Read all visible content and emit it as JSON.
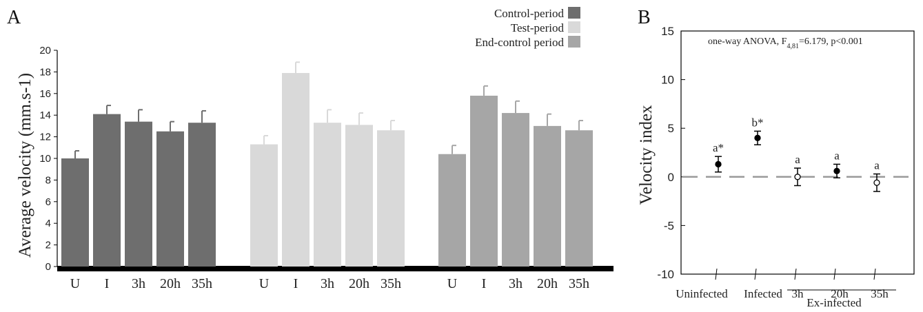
{
  "panel_a": {
    "label": "A",
    "legend": [
      {
        "name": "Control-period",
        "color": "#6e6e6e"
      },
      {
        "name": "Test-period",
        "color": "#d9d9d9"
      },
      {
        "name": "End-control period",
        "color": "#a6a6a6"
      }
    ]
  },
  "panel_b": {
    "label": "B",
    "annotation": "one-way ANOVA,  F",
    "annotation_sub": "4,81",
    "annotation_tail": "=6.179, p<0.001",
    "group_label": "Ex-infected"
  },
  "chart_data": [
    {
      "type": "bar",
      "title": "",
      "xlabel": "",
      "ylabel": "Average velocity (mm.s-1)",
      "ylim": [
        0,
        20
      ],
      "yticks": [
        0,
        2,
        4,
        6,
        8,
        10,
        12,
        14,
        16,
        18,
        20
      ],
      "grid": false,
      "legend_position": "top-right",
      "categories": [
        "U",
        "I",
        "3h",
        "20h",
        "35h"
      ],
      "series": [
        {
          "name": "Control-period",
          "color": "#6e6e6e",
          "values": [
            10.0,
            14.1,
            13.4,
            12.5,
            13.3
          ],
          "errors": [
            0.7,
            0.8,
            1.1,
            0.9,
            1.1
          ]
        },
        {
          "name": "Test-period",
          "color": "#d9d9d9",
          "values": [
            11.3,
            17.9,
            13.3,
            13.1,
            12.6
          ],
          "errors": [
            0.8,
            1.0,
            1.2,
            1.1,
            0.9
          ]
        },
        {
          "name": "End-control period",
          "color": "#a6a6a6",
          "values": [
            10.4,
            15.8,
            14.2,
            13.0,
            12.6
          ],
          "errors": [
            0.8,
            0.9,
            1.1,
            1.1,
            0.9
          ]
        }
      ]
    },
    {
      "type": "scatter",
      "title": "",
      "xlabel": "",
      "ylabel": "Velocity index",
      "ylim": [
        -10,
        15
      ],
      "yticks": [
        -10,
        -5,
        0,
        5,
        10,
        15
      ],
      "grid": false,
      "reference_line": 0,
      "categories": [
        "Uninfected",
        "Infected",
        "3h",
        "20h",
        "35h"
      ],
      "values": [
        1.3,
        4.0,
        0.0,
        0.6,
        -0.6
      ],
      "errors": [
        0.8,
        0.7,
        0.9,
        0.7,
        0.9
      ],
      "filled": [
        true,
        true,
        false,
        true,
        false
      ],
      "significance": [
        "a*",
        "b*",
        "a",
        "a",
        "a"
      ]
    }
  ]
}
